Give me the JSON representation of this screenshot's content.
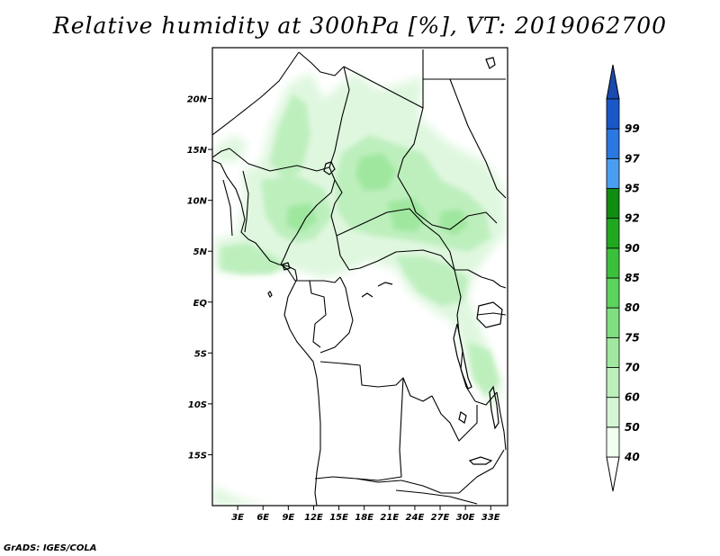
{
  "title": "Relative humidity at 300hPa [%], VT: 2019062700",
  "credit": "GrADS: IGES/COLA",
  "map": {
    "lon_range": [
      0,
      35
    ],
    "lat_range": [
      -20,
      25
    ],
    "lat_ticks": [
      {
        "value": 20,
        "label": "20N"
      },
      {
        "value": 15,
        "label": "15N"
      },
      {
        "value": 10,
        "label": "10N"
      },
      {
        "value": 5,
        "label": "5N"
      },
      {
        "value": 0,
        "label": "EQ"
      },
      {
        "value": -5,
        "label": "5S"
      },
      {
        "value": -10,
        "label": "10S"
      },
      {
        "value": -15,
        "label": "15S"
      }
    ],
    "lon_ticks": [
      {
        "value": 3,
        "label": "3E"
      },
      {
        "value": 6,
        "label": "6E"
      },
      {
        "value": 9,
        "label": "9E"
      },
      {
        "value": 12,
        "label": "12E"
      },
      {
        "value": 15,
        "label": "15E"
      },
      {
        "value": 18,
        "label": "18E"
      },
      {
        "value": 21,
        "label": "21E"
      },
      {
        "value": 24,
        "label": "24E"
      },
      {
        "value": 27,
        "label": "27E"
      },
      {
        "value": 30,
        "label": "30E"
      },
      {
        "value": 33,
        "label": "33E"
      }
    ]
  },
  "colorbar": {
    "levels": [
      "40",
      "50",
      "60",
      "70",
      "75",
      "80",
      "85",
      "90",
      "92",
      "95",
      "97",
      "99"
    ],
    "colors": [
      "#f0fff0",
      "#d6f5d6",
      "#bdefbd",
      "#a0e8a0",
      "#80e080",
      "#5cd35c",
      "#3cc03c",
      "#20a820",
      "#108c10",
      "#4a9ef0",
      "#2a78e0",
      "#1a58c8"
    ],
    "under_color": "#ffffff",
    "over_color": "#1a4ab0"
  },
  "colors": {
    "humidity_light": "#dff7df",
    "humidity_mid": "#bdefbd",
    "humidity_strong": "#9fe79f",
    "border": "#000000"
  }
}
